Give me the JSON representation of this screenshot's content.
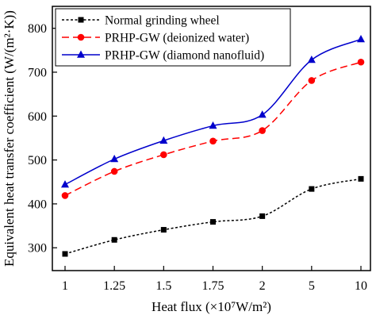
{
  "chart_data": {
    "type": "line",
    "title": "",
    "xlabel": "Heat flux (×10⁷W/m²)",
    "ylabel": "Equivalent heat transfer coefficient (W/(m²·K))",
    "categories": [
      "1",
      "1.25",
      "1.5",
      "1.75",
      "2",
      "5",
      "10"
    ],
    "yticks": [
      300,
      400,
      500,
      600,
      700,
      800
    ],
    "ylim": [
      248,
      850
    ],
    "grid": false,
    "legend_position": "top-left",
    "series": [
      {
        "name": "Normal grinding wheel",
        "color": "#000000",
        "line_style": "dotted",
        "marker": "square",
        "values": [
          286,
          318,
          341,
          359,
          372,
          434,
          457
        ]
      },
      {
        "name": "PRHP-GW (deionized water)",
        "color": "#ff0000",
        "line_style": "dashed",
        "marker": "circle",
        "values": [
          419,
          474,
          512,
          543,
          567,
          681,
          723
        ]
      },
      {
        "name": "PRHP-GW (diamond nanofluid)",
        "color": "#0000cc",
        "line_style": "solid",
        "marker": "triangle",
        "values": [
          444,
          502,
          544,
          578,
          603,
          728,
          775
        ]
      }
    ]
  }
}
